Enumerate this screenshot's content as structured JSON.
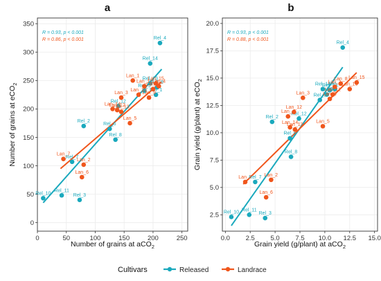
{
  "colors": {
    "released": "#1aa9bd",
    "landrace": "#f0561c",
    "panel_bg": "#ffffff",
    "grid": "#ebebeb",
    "frame": "#333333"
  },
  "legend": {
    "title": "Cultivars",
    "items": [
      {
        "label": "Released",
        "color": "#1aa9bd"
      },
      {
        "label": "Landrace",
        "color": "#f0561c"
      }
    ]
  },
  "chart_data": [
    {
      "type": "scatter",
      "panel": "a",
      "xlabel_main": "Number of grains at aCO",
      "xlabel_sub": "2",
      "ylabel_main": "Number of grains at eCO",
      "ylabel_sub": "2",
      "xlim": [
        0,
        260
      ],
      "ylim": [
        -15,
        360
      ],
      "xticks": [
        0,
        50,
        100,
        150,
        200,
        250
      ],
      "yticks": [
        0,
        50,
        100,
        150,
        200,
        250,
        300,
        350
      ],
      "stats": [
        {
          "text": "R = 0.93, p < 0.001",
          "series": "Released"
        },
        {
          "text": "R = 0.86, p < 0.001",
          "series": "Landrace"
        }
      ],
      "series": [
        {
          "name": "Released",
          "fit": {
            "x": [
              10,
              215
            ],
            "y": [
              35,
              270
            ]
          },
          "points": [
            {
              "label": "Rel_10",
              "x": 10,
              "y": 43
            },
            {
              "label": "Rel_11",
              "x": 42,
              "y": 48
            },
            {
              "label": "Rel_3",
              "x": 73,
              "y": 40
            },
            {
              "label": "Rel_7",
              "x": 60,
              "y": 107
            },
            {
              "label": "Rel_2",
              "x": 80,
              "y": 170
            },
            {
              "label": "Rel_8",
              "x": 135,
              "y": 146
            },
            {
              "label": "Rel_6",
              "x": 125,
              "y": 165
            },
            {
              "label": "Rel_12",
              "x": 140,
              "y": 205
            },
            {
              "label": "Rel_14",
              "x": 195,
              "y": 280
            },
            {
              "label": "Rel_4",
              "x": 212,
              "y": 316
            },
            {
              "label": "Rel_13",
              "x": 195,
              "y": 245
            },
            {
              "label": "Rel_9",
              "x": 207,
              "y": 238
            },
            {
              "label": "Rel_1",
              "x": 205,
              "y": 225
            },
            {
              "label": "Rel_5",
              "x": 185,
              "y": 232
            }
          ]
        },
        {
          "name": "Landrace",
          "fit": {
            "x": [
              40,
              215
            ],
            "y": [
              95,
              248
            ]
          },
          "points": [
            {
              "label": "Lan_7",
              "x": 45,
              "y": 112
            },
            {
              "label": "Lan_2",
              "x": 80,
              "y": 102
            },
            {
              "label": "Lan_6",
              "x": 77,
              "y": 80
            },
            {
              "label": "Lan_3",
              "x": 145,
              "y": 220
            },
            {
              "label": "Lan_12",
              "x": 138,
              "y": 198
            },
            {
              "label": "Lan_14",
              "x": 130,
              "y": 200
            },
            {
              "label": "Lan_13",
              "x": 145,
              "y": 195
            },
            {
              "label": "Lan_5",
              "x": 160,
              "y": 175
            },
            {
              "label": "Lan_1",
              "x": 165,
              "y": 250
            },
            {
              "label": "Lan_11",
              "x": 185,
              "y": 240
            },
            {
              "label": "Lan_15",
              "x": 205,
              "y": 245
            },
            {
              "label": "Lan_8",
              "x": 200,
              "y": 235
            },
            {
              "label": "Lan_4",
              "x": 210,
              "y": 240
            },
            {
              "label": "Lan_9",
              "x": 193,
              "y": 220
            },
            {
              "label": "Lan_10",
              "x": 175,
              "y": 225
            }
          ]
        }
      ]
    },
    {
      "type": "scatter",
      "panel": "b",
      "xlabel_main": "Grain yield (g/plant) at aCO",
      "xlabel_sub": "2",
      "ylabel_main": "Grain yield (g/plant) at eCO",
      "ylabel_sub": "2",
      "xlim": [
        -0.3,
        15.3
      ],
      "ylim": [
        1,
        20.5
      ],
      "xticks": [
        0.0,
        2.5,
        5.0,
        7.5,
        10.0,
        12.5,
        15.0
      ],
      "ytick_labels": [
        "2.5",
        "5.0",
        "7.5",
        "10.0",
        "12.5",
        "15.0",
        "17.5",
        "20.0"
      ],
      "yticks": [
        2.5,
        5.0,
        7.5,
        10.0,
        12.5,
        15.0,
        17.5,
        20.0
      ],
      "xtick_labels": [
        "0.0",
        "2.5",
        "5.0",
        "7.5",
        "10.0",
        "12.5",
        "15.0"
      ],
      "stats": [
        {
          "text": "R = 0.93, p < 0.001",
          "series": "Released"
        },
        {
          "text": "R = 0.88, p < 0.001",
          "series": "Landrace"
        }
      ],
      "series": [
        {
          "name": "Released",
          "fit": {
            "x": [
              0.6,
              11.8
            ],
            "y": [
              1.5,
              16.0
            ]
          },
          "points": [
            {
              "label": "Rel_10",
              "x": 0.6,
              "y": 2.3
            },
            {
              "label": "Rel_11",
              "x": 2.4,
              "y": 2.5
            },
            {
              "label": "Rel_3",
              "x": 4.0,
              "y": 2.2
            },
            {
              "label": "Rel_7",
              "x": 3.0,
              "y": 5.5
            },
            {
              "label": "Rel_2",
              "x": 4.7,
              "y": 11.0
            },
            {
              "label": "Rel_8",
              "x": 6.6,
              "y": 7.8
            },
            {
              "label": "Rel_6",
              "x": 6.5,
              "y": 9.5
            },
            {
              "label": "Rel_12",
              "x": 7.4,
              "y": 11.3
            },
            {
              "label": "Rel_14",
              "x": 9.8,
              "y": 14.0
            },
            {
              "label": "Rel_4",
              "x": 11.8,
              "y": 17.8
            },
            {
              "label": "Rel_13",
              "x": 10.5,
              "y": 13.9
            },
            {
              "label": "Rel_9",
              "x": 10.2,
              "y": 13.5
            },
            {
              "label": "Rel_5",
              "x": 9.5,
              "y": 13.0
            },
            {
              "label": "Rel_1",
              "x": 11.0,
              "y": 14.0
            }
          ]
        },
        {
          "name": "Landrace",
          "fit": {
            "x": [
              1.8,
              13.2
            ],
            "y": [
              5.3,
              15.5
            ]
          },
          "points": [
            {
              "label": "Lan_7",
              "x": 2.0,
              "y": 5.5
            },
            {
              "label": "Lan_2",
              "x": 4.6,
              "y": 5.7
            },
            {
              "label": "Lan_6",
              "x": 4.1,
              "y": 4.1
            },
            {
              "label": "Lan_3",
              "x": 7.8,
              "y": 13.2
            },
            {
              "label": "Lan_4",
              "x": 6.3,
              "y": 11.5
            },
            {
              "label": "Lan_12",
              "x": 6.9,
              "y": 11.9
            },
            {
              "label": "Lan_14",
              "x": 6.5,
              "y": 10.5
            },
            {
              "label": "Lan_13",
              "x": 7.0,
              "y": 10.3
            },
            {
              "label": "Lan_5",
              "x": 9.8,
              "y": 10.6
            },
            {
              "label": "Lan_15",
              "x": 13.2,
              "y": 14.6
            },
            {
              "label": "Lan_8",
              "x": 11.6,
              "y": 14.5
            },
            {
              "label": "Lan_1",
              "x": 11.0,
              "y": 14.2
            },
            {
              "label": "Lan_11",
              "x": 10.8,
              "y": 13.5
            },
            {
              "label": "Lan_9",
              "x": 10.5,
              "y": 13.1
            },
            {
              "label": "Lan_10",
              "x": 12.5,
              "y": 14.0
            }
          ]
        }
      ]
    }
  ]
}
